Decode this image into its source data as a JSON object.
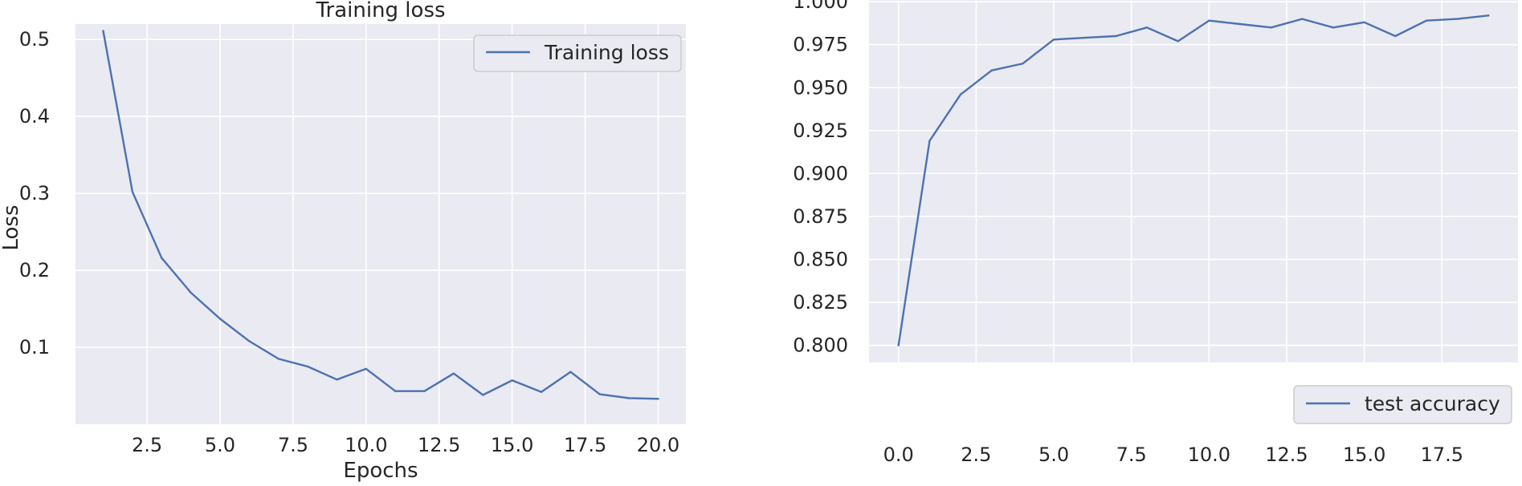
{
  "chart_data": [
    {
      "type": "line",
      "title": "Training loss",
      "xlabel": "Epochs",
      "ylabel": "Loss",
      "xlim": [
        0.05,
        20.95
      ],
      "ylim": [
        0.0,
        0.52
      ],
      "x_ticks": [
        "2.5",
        "5.0",
        "7.5",
        "10.0",
        "12.5",
        "15.0",
        "17.5",
        "20.0"
      ],
      "x_tick_values": [
        2.5,
        5.0,
        7.5,
        10.0,
        12.5,
        15.0,
        17.5,
        20.0
      ],
      "y_ticks": [
        "0.1",
        "0.2",
        "0.3",
        "0.4",
        "0.5"
      ],
      "y_tick_values": [
        0.1,
        0.2,
        0.3,
        0.4,
        0.5
      ],
      "grid": true,
      "legend_position": "top-right",
      "series": [
        {
          "name": "Training loss",
          "color": "#4c72b0",
          "x": [
            1,
            2,
            3,
            4,
            5,
            6,
            7,
            8,
            9,
            10,
            11,
            12,
            13,
            14,
            15,
            16,
            17,
            18,
            19,
            20
          ],
          "y": [
            0.511,
            0.302,
            0.216,
            0.171,
            0.137,
            0.108,
            0.085,
            0.075,
            0.058,
            0.072,
            0.043,
            0.043,
            0.066,
            0.038,
            0.057,
            0.042,
            0.068,
            0.039,
            0.034,
            0.033
          ]
        }
      ]
    },
    {
      "type": "line",
      "title": "",
      "xlabel": "",
      "ylabel": "",
      "xlim": [
        -0.95,
        19.95
      ],
      "ylim": [
        0.79,
        1.001
      ],
      "x_ticks": [
        "0.0",
        "2.5",
        "5.0",
        "7.5",
        "10.0",
        "12.5",
        "15.0",
        "17.5"
      ],
      "x_tick_values": [
        0.0,
        2.5,
        5.0,
        7.5,
        10.0,
        12.5,
        15.0,
        17.5
      ],
      "y_ticks": [
        "0.800",
        "0.825",
        "0.850",
        "0.875",
        "0.900",
        "0.925",
        "0.950",
        "0.975",
        "1.000"
      ],
      "y_tick_values": [
        0.8,
        0.825,
        0.85,
        0.875,
        0.9,
        0.925,
        0.95,
        0.975,
        1.0
      ],
      "grid": true,
      "legend_position": "bottom-right",
      "series": [
        {
          "name": "test accuracy",
          "color": "#4c72b0",
          "x": [
            0,
            1,
            2,
            3,
            4,
            5,
            6,
            7,
            8,
            9,
            10,
            11,
            12,
            13,
            14,
            15,
            16,
            17,
            18,
            19
          ],
          "y": [
            0.8,
            0.919,
            0.946,
            0.96,
            0.964,
            0.978,
            0.979,
            0.98,
            0.985,
            0.977,
            0.989,
            0.987,
            0.985,
            0.99,
            0.985,
            0.988,
            0.98,
            0.989,
            0.99,
            0.992
          ]
        }
      ]
    }
  ]
}
